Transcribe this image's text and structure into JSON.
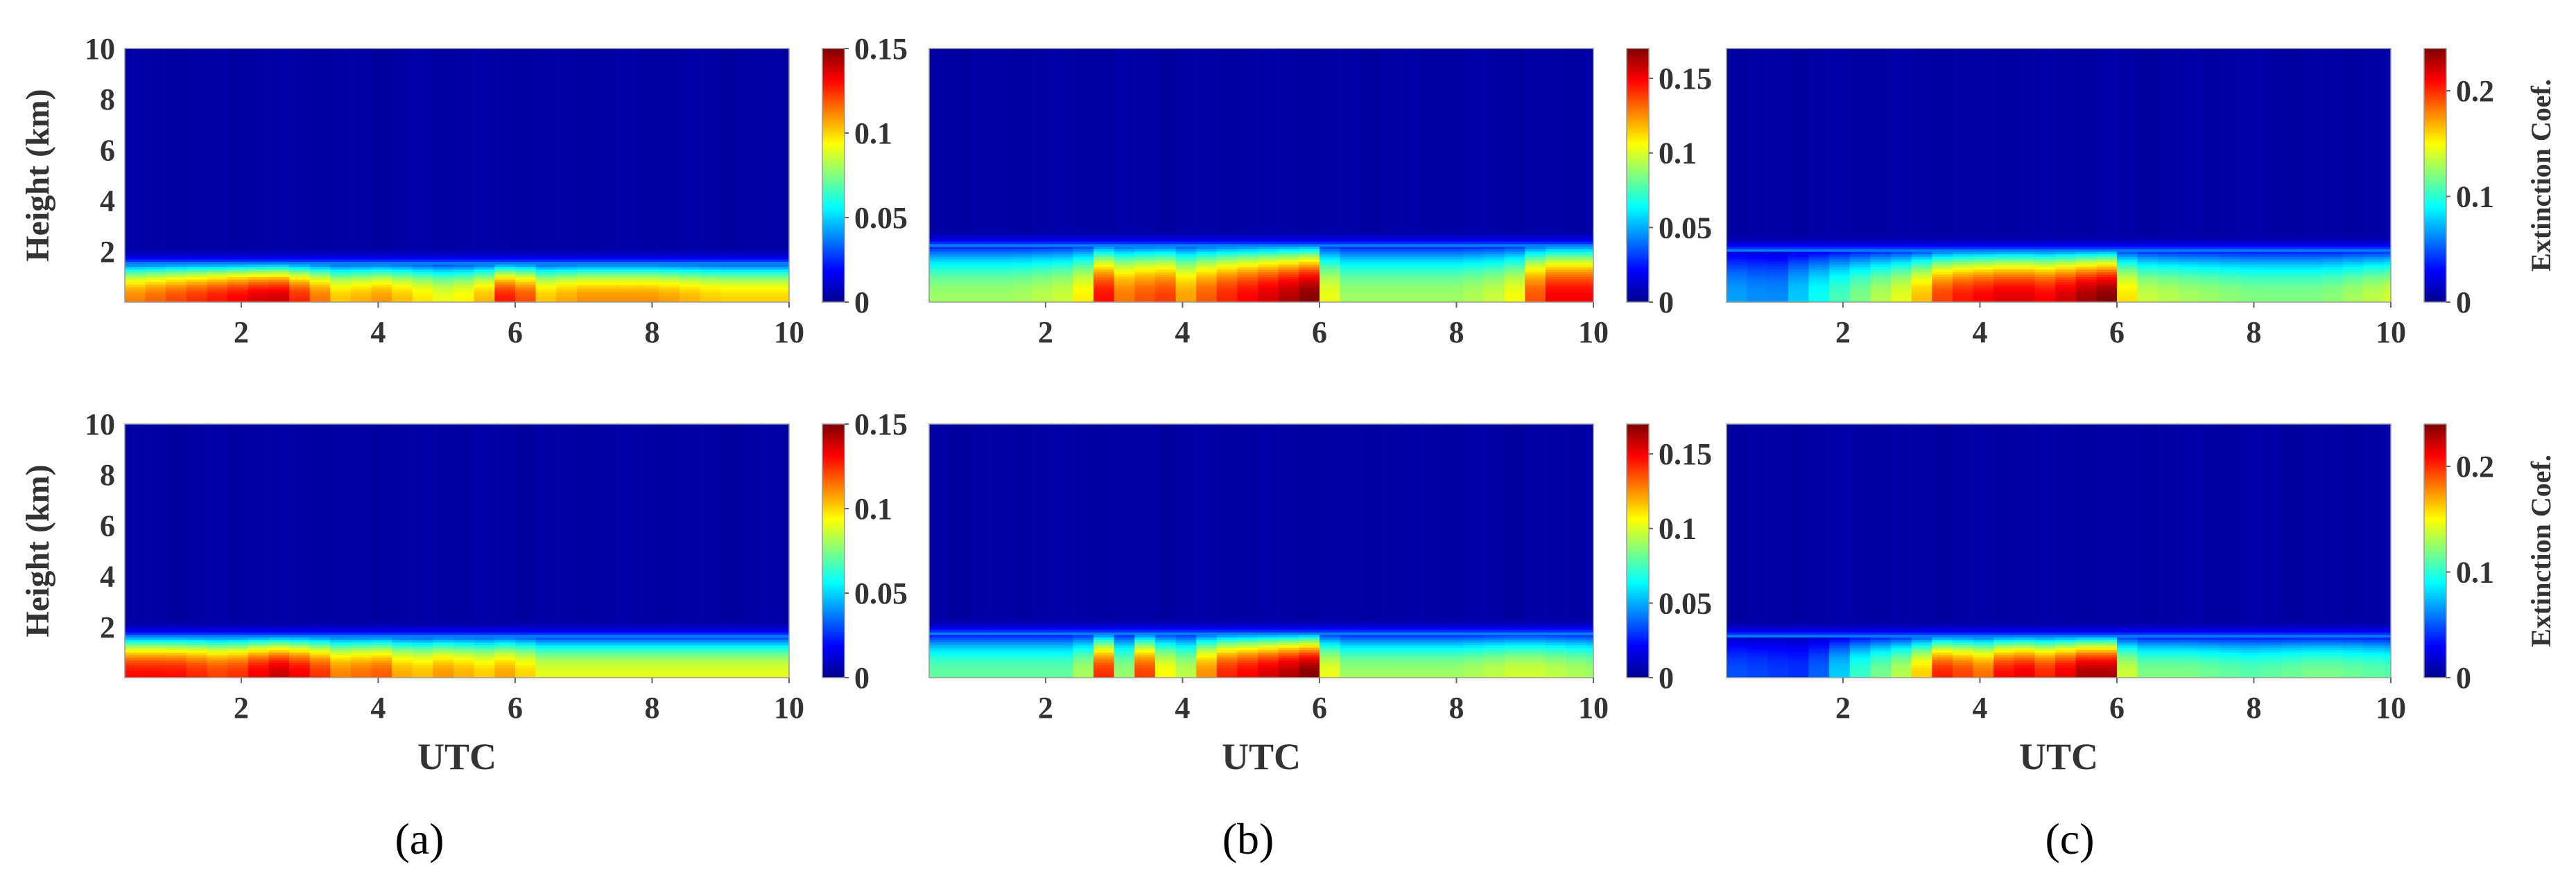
{
  "figure": {
    "panel_labels": [
      "(a)",
      "(b)",
      "(c)"
    ],
    "colormap": [
      "#00008f",
      "#0000ff",
      "#0080ff",
      "#00ffff",
      "#80ff80",
      "#ffff00",
      "#ff8000",
      "#ff0000",
      "#800000"
    ],
    "background_color": "#00008f"
  },
  "chart_data": [
    {
      "type": "heatmap",
      "id": "a-top",
      "column": "(a)",
      "row": "top",
      "xlabel": "",
      "ylabel": "Height (km)",
      "colorbar_label": "",
      "xlim": [
        0.3,
        10
      ],
      "ylim": [
        0,
        10
      ],
      "xticks": [
        "2",
        "4",
        "6",
        "8",
        "10"
      ],
      "yticks": [
        "2",
        "4",
        "6",
        "8",
        "10"
      ],
      "clim": [
        0,
        0.15
      ],
      "cticks": [
        {
          "v": 0,
          "t": "0"
        },
        {
          "v": 0.05,
          "t": "0.05"
        },
        {
          "v": 0.1,
          "t": "0.1"
        },
        {
          "v": 0.15,
          "t": "0.15"
        }
      ],
      "layer_top_km": 1.5,
      "time_step_h": 0.3,
      "surface_extinction": [
        [
          0.3,
          0.11
        ],
        [
          1.0,
          0.12
        ],
        [
          1.8,
          0.13
        ],
        [
          2.5,
          0.14
        ],
        [
          3.0,
          0.12
        ],
        [
          3.5,
          0.1
        ],
        [
          4.0,
          0.11
        ],
        [
          4.5,
          0.1
        ],
        [
          5.0,
          0.09
        ],
        [
          5.5,
          0.1
        ],
        [
          6.0,
          0.14
        ],
        [
          6.3,
          0.1
        ],
        [
          7.0,
          0.11
        ],
        [
          8.0,
          0.11
        ],
        [
          9.0,
          0.1
        ],
        [
          10.0,
          0.1
        ]
      ]
    },
    {
      "type": "heatmap",
      "id": "b-top",
      "column": "(b)",
      "row": "top",
      "xlabel": "",
      "ylabel": "",
      "colorbar_label": "",
      "xlim": [
        0.3,
        10
      ],
      "ylim": [
        0,
        10
      ],
      "xticks": [
        "2",
        "4",
        "6",
        "8",
        "10"
      ],
      "yticks": [],
      "clim": [
        0,
        0.17
      ],
      "cticks": [
        {
          "v": 0,
          "t": "0"
        },
        {
          "v": 0.05,
          "t": "0.05"
        },
        {
          "v": 0.1,
          "t": "0.1"
        },
        {
          "v": 0.15,
          "t": "0.15"
        }
      ],
      "layer_top_km": 2.2,
      "time_step_h": 0.3,
      "surface_extinction": [
        [
          0.3,
          0.09
        ],
        [
          1.5,
          0.09
        ],
        [
          2.5,
          0.1
        ],
        [
          2.8,
          0.15
        ],
        [
          3.3,
          0.12
        ],
        [
          3.6,
          0.15
        ],
        [
          4.0,
          0.12
        ],
        [
          4.5,
          0.14
        ],
        [
          5.0,
          0.15
        ],
        [
          5.5,
          0.16
        ],
        [
          5.9,
          0.17
        ],
        [
          6.2,
          0.09
        ],
        [
          7.0,
          0.09
        ],
        [
          8.0,
          0.09
        ],
        [
          8.8,
          0.1
        ],
        [
          9.3,
          0.15
        ],
        [
          10.0,
          0.15
        ]
      ]
    },
    {
      "type": "heatmap",
      "id": "c-top",
      "column": "(c)",
      "row": "top",
      "xlabel": "",
      "ylabel": "",
      "colorbar_label": "Extinction Coef.",
      "xlim": [
        0.3,
        10
      ],
      "ylim": [
        0,
        10
      ],
      "xticks": [
        "2",
        "4",
        "6",
        "8",
        "10"
      ],
      "yticks": [],
      "clim": [
        0,
        0.24
      ],
      "cticks": [
        {
          "v": 0,
          "t": "0"
        },
        {
          "v": 0.1,
          "t": "0.1"
        },
        {
          "v": 0.2,
          "t": "0.2"
        }
      ],
      "layer_top_km": 2.0,
      "time_step_h": 0.3,
      "surface_extinction": [
        [
          0.3,
          0.07
        ],
        [
          1.0,
          0.06
        ],
        [
          1.8,
          0.1
        ],
        [
          2.5,
          0.13
        ],
        [
          3.0,
          0.15
        ],
        [
          3.5,
          0.2
        ],
        [
          4.0,
          0.21
        ],
        [
          4.5,
          0.22
        ],
        [
          5.0,
          0.21
        ],
        [
          5.5,
          0.23
        ],
        [
          5.9,
          0.24
        ],
        [
          6.2,
          0.14
        ],
        [
          7.0,
          0.13
        ],
        [
          8.0,
          0.12
        ],
        [
          9.0,
          0.12
        ],
        [
          10.0,
          0.14
        ]
      ]
    },
    {
      "type": "heatmap",
      "id": "a-bottom",
      "column": "(a)",
      "row": "bottom",
      "xlabel": "UTC",
      "ylabel": "Height (km)",
      "colorbar_label": "",
      "xlim": [
        0.3,
        10
      ],
      "ylim": [
        0,
        10
      ],
      "xticks": [
        "2",
        "4",
        "6",
        "8",
        "10"
      ],
      "yticks": [
        "2",
        "4",
        "6",
        "8",
        "10"
      ],
      "clim": [
        0,
        0.15
      ],
      "cticks": [
        {
          "v": 0,
          "t": "0"
        },
        {
          "v": 0.05,
          "t": "0.05"
        },
        {
          "v": 0.1,
          "t": "0.1"
        },
        {
          "v": 0.15,
          "t": "0.15"
        }
      ],
      "layer_top_km": 1.6,
      "time_step_h": 0.3,
      "surface_extinction": [
        [
          0.3,
          0.13
        ],
        [
          1.0,
          0.13
        ],
        [
          1.8,
          0.12
        ],
        [
          2.5,
          0.14
        ],
        [
          3.0,
          0.13
        ],
        [
          3.5,
          0.11
        ],
        [
          4.0,
          0.12
        ],
        [
          4.5,
          0.1
        ],
        [
          5.0,
          0.11
        ],
        [
          5.5,
          0.1
        ],
        [
          6.0,
          0.11
        ],
        [
          6.3,
          0.09
        ],
        [
          7.0,
          0.09
        ],
        [
          8.0,
          0.09
        ],
        [
          9.0,
          0.09
        ],
        [
          10.0,
          0.09
        ]
      ]
    },
    {
      "type": "heatmap",
      "id": "b-bottom",
      "column": "(b)",
      "row": "bottom",
      "xlabel": "UTC",
      "ylabel": "",
      "colorbar_label": "",
      "xlim": [
        0.3,
        10
      ],
      "ylim": [
        0,
        10
      ],
      "xticks": [
        "2",
        "4",
        "6",
        "8",
        "10"
      ],
      "yticks": [],
      "clim": [
        0,
        0.17
      ],
      "cticks": [
        {
          "v": 0,
          "t": "0"
        },
        {
          "v": 0.05,
          "t": "0.05"
        },
        {
          "v": 0.1,
          "t": "0.1"
        },
        {
          "v": 0.15,
          "t": "0.15"
        }
      ],
      "layer_top_km": 1.7,
      "time_step_h": 0.3,
      "surface_extinction": [
        [
          0.3,
          0.08
        ],
        [
          1.5,
          0.08
        ],
        [
          2.5,
          0.08
        ],
        [
          2.8,
          0.15
        ],
        [
          3.2,
          0.08
        ],
        [
          3.5,
          0.15
        ],
        [
          3.9,
          0.08
        ],
        [
          4.5,
          0.14
        ],
        [
          5.0,
          0.15
        ],
        [
          5.5,
          0.16
        ],
        [
          5.9,
          0.17
        ],
        [
          6.2,
          0.09
        ],
        [
          7.0,
          0.09
        ],
        [
          8.0,
          0.09
        ],
        [
          9.0,
          0.1
        ],
        [
          10.0,
          0.09
        ]
      ]
    },
    {
      "type": "heatmap",
      "id": "c-bottom",
      "column": "(c)",
      "row": "bottom",
      "xlabel": "UTC",
      "ylabel": "",
      "colorbar_label": "Extinction Coef.",
      "xlim": [
        0.3,
        10
      ],
      "ylim": [
        0,
        10
      ],
      "xticks": [
        "2",
        "4",
        "6",
        "8",
        "10"
      ],
      "yticks": [],
      "clim": [
        0,
        0.24
      ],
      "cticks": [
        {
          "v": 0,
          "t": "0"
        },
        {
          "v": 0.1,
          "t": "0.1"
        },
        {
          "v": 0.2,
          "t": "0.2"
        }
      ],
      "layer_top_km": 1.6,
      "time_step_h": 0.3,
      "surface_extinction": [
        [
          0.3,
          0.05
        ],
        [
          1.5,
          0.04
        ],
        [
          2.2,
          0.1
        ],
        [
          3.0,
          0.14
        ],
        [
          3.5,
          0.21
        ],
        [
          4.0,
          0.18
        ],
        [
          4.5,
          0.22
        ],
        [
          5.0,
          0.2
        ],
        [
          5.5,
          0.23
        ],
        [
          5.9,
          0.23
        ],
        [
          6.2,
          0.12
        ],
        [
          7.0,
          0.12
        ],
        [
          8.0,
          0.11
        ],
        [
          9.0,
          0.12
        ],
        [
          10.0,
          0.11
        ]
      ]
    }
  ]
}
